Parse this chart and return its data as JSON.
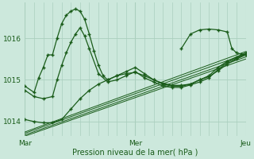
{
  "xlabel": "Pression niveau de la mer( hPa )",
  "bg_color": "#cce8dc",
  "grid_color": "#aacfbe",
  "line_color": "#1a5c1a",
  "tick_color": "#1a5c1a",
  "label_color": "#1a5c1a",
  "ylim": [
    1013.65,
    1016.85
  ],
  "xlim": [
    0,
    48
  ],
  "yticks": [
    1014,
    1015,
    1016
  ],
  "xtick_positions": [
    0,
    24,
    48
  ],
  "xtick_labels": [
    "Mar",
    "Mer",
    "Jeu"
  ],
  "minor_xticks": [
    0,
    2,
    4,
    6,
    8,
    10,
    12,
    14,
    16,
    18,
    20,
    22,
    24,
    26,
    28,
    30,
    32,
    34,
    36,
    38,
    40,
    42,
    44,
    46,
    48
  ],
  "figsize": [
    3.2,
    2.0
  ],
  "dpi": 100,
  "line_A_x": [
    0,
    2,
    3,
    4,
    5,
    6,
    7,
    8,
    9,
    10,
    11,
    12,
    13,
    14,
    15,
    16,
    17,
    18,
    20,
    22,
    24,
    26,
    28,
    30,
    32,
    34,
    36,
    38,
    40,
    42,
    44,
    46,
    48
  ],
  "line_A_y": [
    1014.85,
    1014.7,
    1015.05,
    1015.3,
    1015.6,
    1015.6,
    1016.0,
    1016.35,
    1016.55,
    1016.65,
    1016.7,
    1016.65,
    1016.45,
    1016.1,
    1015.7,
    1015.35,
    1015.1,
    1015.0,
    1015.1,
    1015.2,
    1015.3,
    1015.15,
    1015.0,
    1014.9,
    1014.85,
    1014.85,
    1014.9,
    1015.0,
    1015.1,
    1015.3,
    1015.45,
    1015.55,
    1015.65
  ],
  "line_B_x": [
    0,
    2,
    4,
    6,
    7,
    8,
    9,
    10,
    11,
    12,
    13,
    14,
    16,
    18,
    20,
    22,
    24,
    26,
    28,
    30,
    32,
    34,
    36,
    38,
    40,
    42,
    44,
    46,
    48
  ],
  "line_B_y": [
    1014.75,
    1014.6,
    1014.55,
    1014.6,
    1015.0,
    1015.35,
    1015.65,
    1015.9,
    1016.1,
    1016.25,
    1016.05,
    1015.75,
    1015.15,
    1014.95,
    1015.0,
    1015.1,
    1015.2,
    1015.05,
    1014.95,
    1014.85,
    1014.82,
    1014.82,
    1014.88,
    1014.95,
    1015.05,
    1015.25,
    1015.42,
    1015.52,
    1015.62
  ],
  "line_C_x": [
    0,
    2,
    4,
    6,
    8,
    10,
    12,
    14,
    16,
    18,
    20,
    22,
    24,
    26,
    28,
    30,
    32,
    34,
    36,
    38,
    40,
    42,
    44,
    46,
    48
  ],
  "line_C_y": [
    1014.05,
    1014.0,
    1013.97,
    1013.97,
    1014.05,
    1014.3,
    1014.55,
    1014.75,
    1014.9,
    1015.0,
    1015.1,
    1015.15,
    1015.18,
    1015.1,
    1015.0,
    1014.92,
    1014.87,
    1014.87,
    1014.9,
    1015.0,
    1015.08,
    1015.22,
    1015.38,
    1015.5,
    1015.6
  ],
  "line_D_x": [
    34,
    36,
    38,
    40,
    42,
    44,
    45,
    46,
    47,
    48
  ],
  "line_D_y": [
    1015.75,
    1016.1,
    1016.2,
    1016.22,
    1016.2,
    1016.15,
    1015.75,
    1015.65,
    1015.62,
    1015.6
  ],
  "trend1_x": [
    0,
    48
  ],
  "trend1_y": [
    1013.75,
    1015.68
  ],
  "trend2_x": [
    0,
    48
  ],
  "trend2_y": [
    1013.72,
    1015.62
  ],
  "trend3_x": [
    0,
    48
  ],
  "trend3_y": [
    1013.68,
    1015.55
  ],
  "trend4_x": [
    0,
    48
  ],
  "trend4_y": [
    1013.65,
    1015.5
  ]
}
